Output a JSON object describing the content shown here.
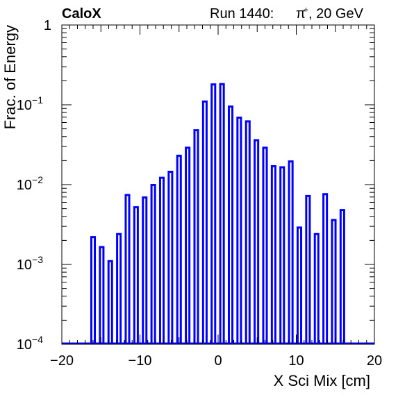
{
  "header": {
    "experiment": "CaloX",
    "run_label": "Run 1440:",
    "particle": "π",
    "charge": "+",
    "energy": ", 20 GeV"
  },
  "chart_data": {
    "type": "bar",
    "title": "",
    "xlabel": "X Sci Mix [cm]",
    "ylabel": "Frac. of Energy",
    "xlim": [
      -20,
      20
    ],
    "ylim": [
      0.0001,
      1
    ],
    "yscale": "log",
    "x_ticks": [
      "−20",
      "−10",
      "0",
      "10",
      "20"
    ],
    "y_ticks": [
      {
        "base": "1",
        "exp": ""
      },
      {
        "base": "10",
        "exp": "−1"
      },
      {
        "base": "10",
        "exp": "−2"
      },
      {
        "base": "10",
        "exp": "−3"
      },
      {
        "base": "10",
        "exp": "−4"
      }
    ],
    "grid": false,
    "series": [
      {
        "color": "#0000ff",
        "x": [
          -16.0,
          -14.9,
          -13.8,
          -12.7,
          -11.6,
          -10.5,
          -9.4,
          -8.3,
          -7.2,
          -6.1,
          -5.0,
          -3.9,
          -2.8,
          -1.7,
          -0.6,
          0.5,
          1.6,
          2.7,
          3.8,
          4.9,
          6.0,
          7.1,
          8.2,
          9.3,
          10.4,
          11.5,
          12.6,
          13.7,
          14.8,
          15.9
        ],
        "values": [
          0.0022,
          0.00165,
          0.0011,
          0.0024,
          0.0074,
          0.0052,
          0.0069,
          0.0099,
          0.0122,
          0.0145,
          0.023,
          0.029,
          0.048,
          0.11,
          0.18,
          0.182,
          0.095,
          0.069,
          0.062,
          0.036,
          0.029,
          0.017,
          0.0165,
          0.0195,
          0.0029,
          0.0072,
          0.0024,
          0.0076,
          0.0036,
          0.0048
        ]
      }
    ]
  }
}
